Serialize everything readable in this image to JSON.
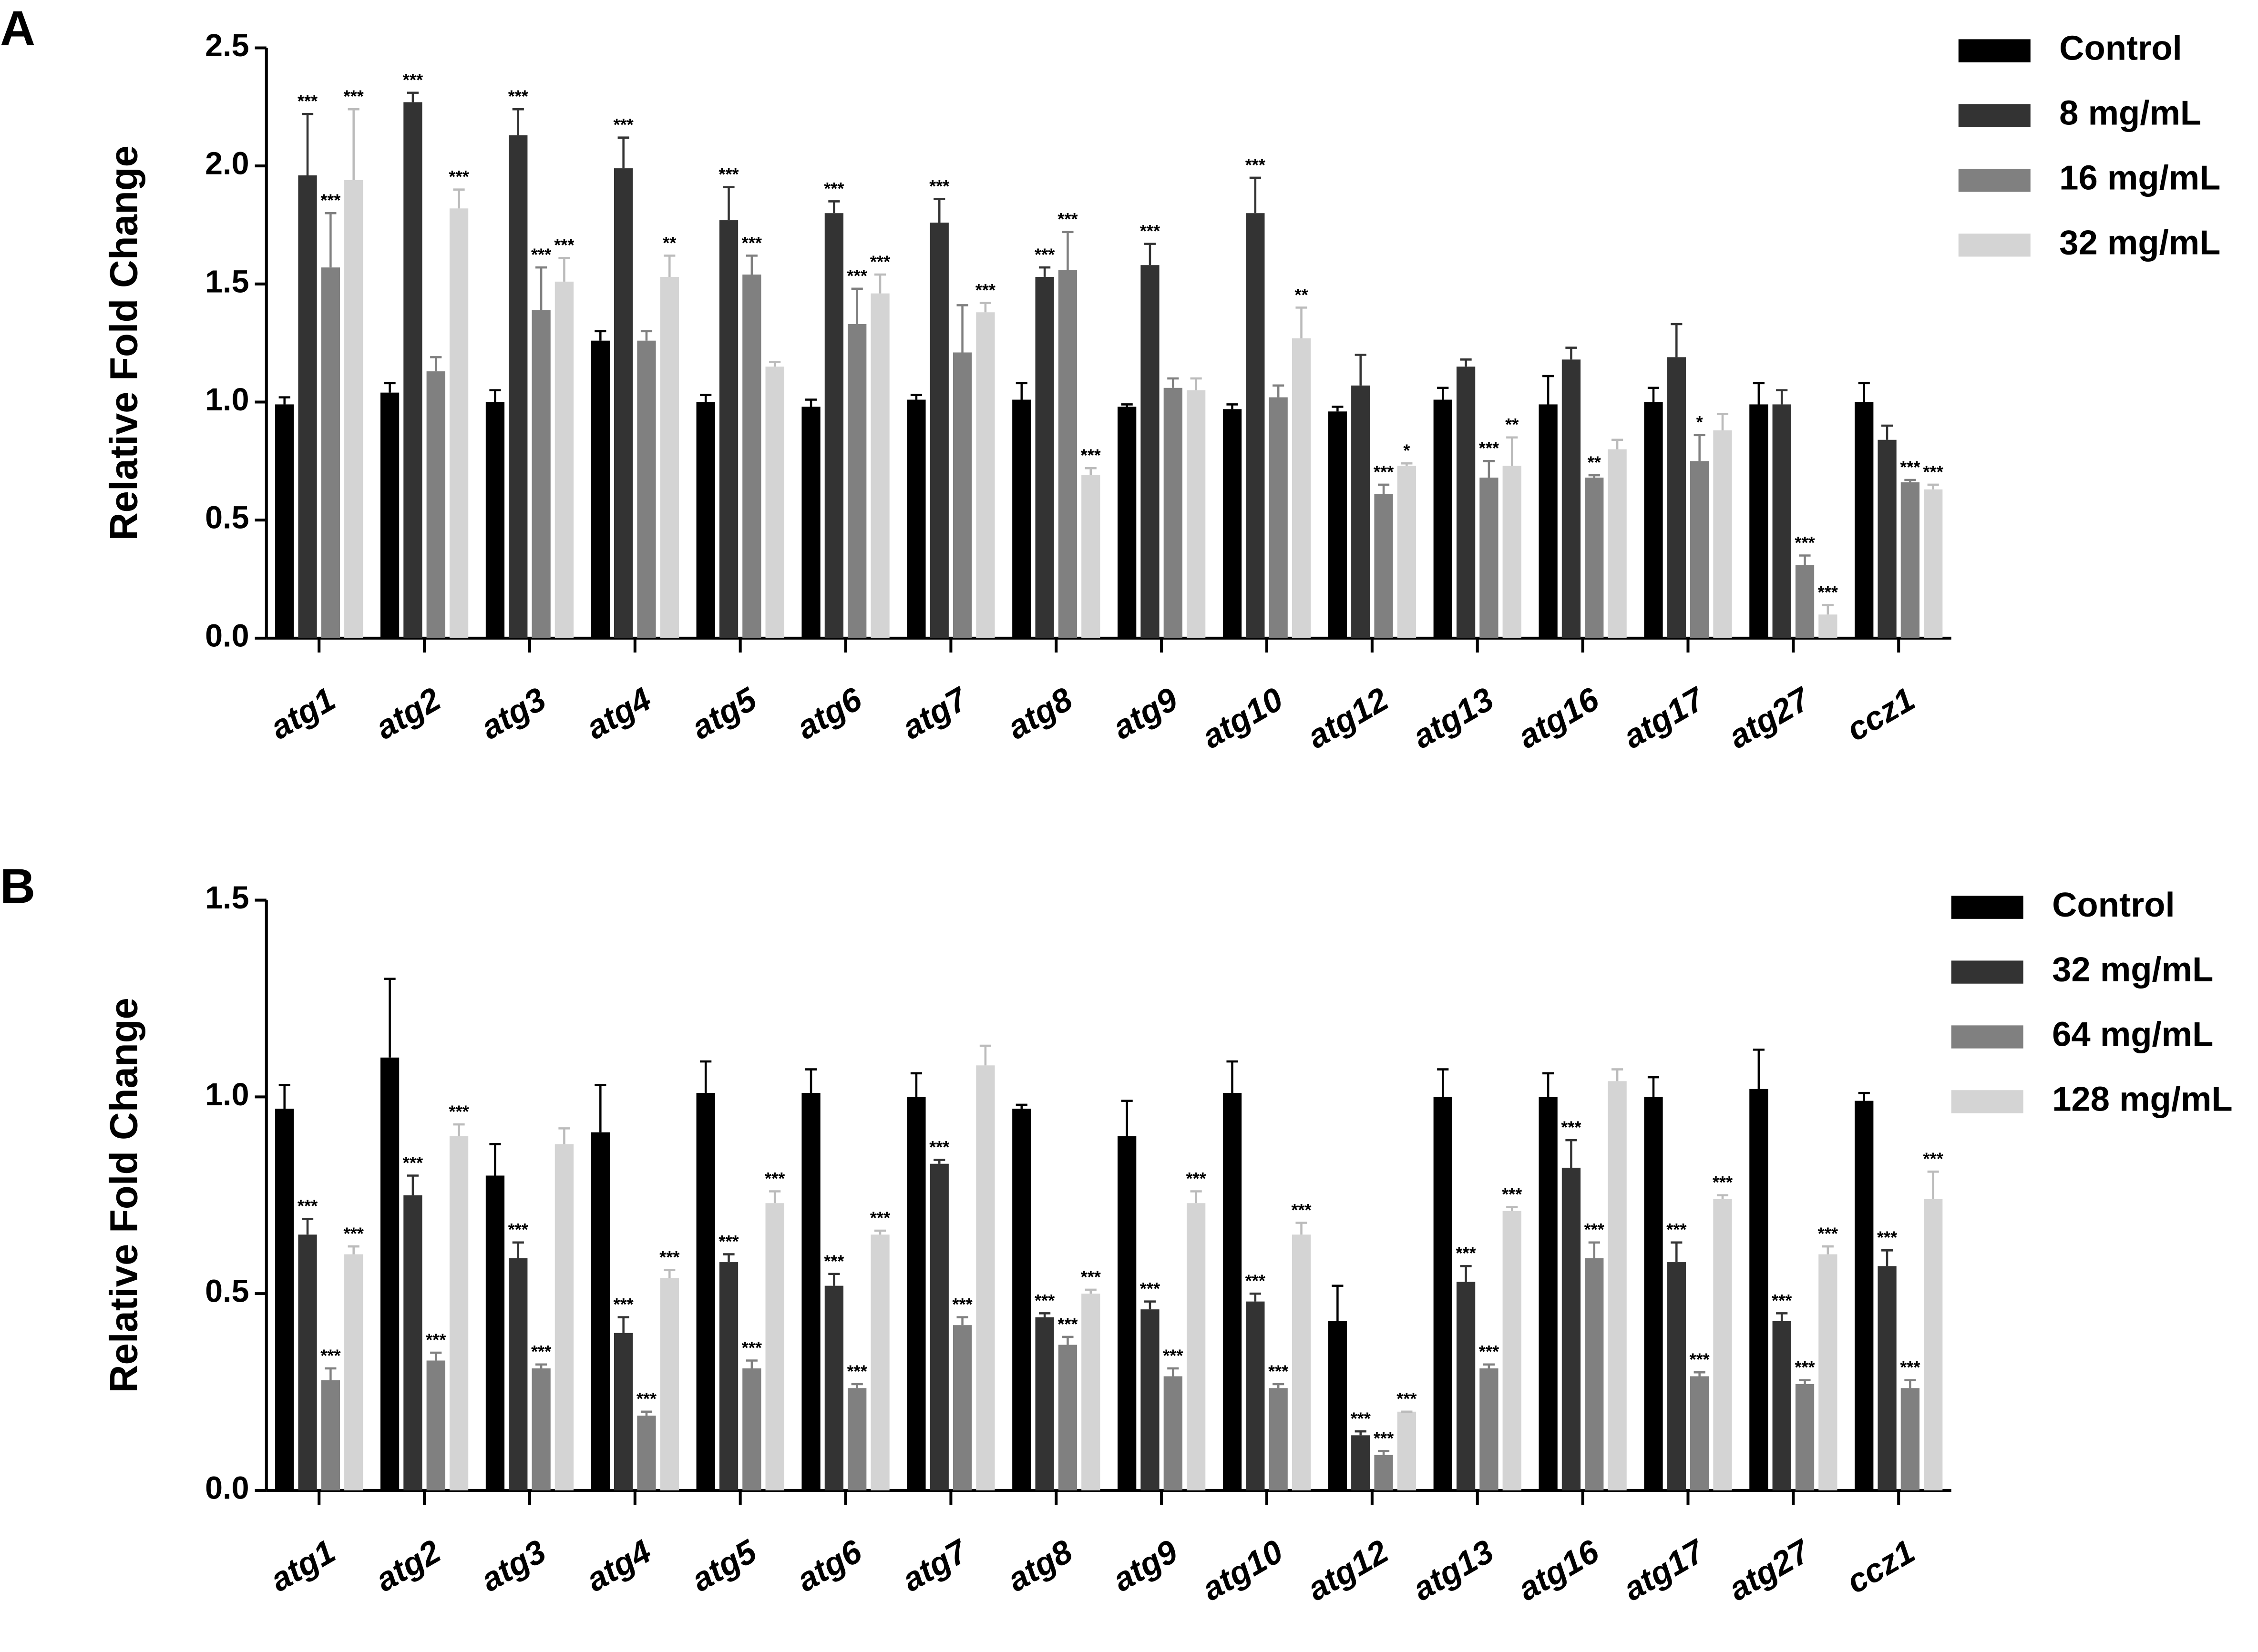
{
  "chart_data": [
    {
      "type": "bar",
      "panel_label": "A",
      "y_label": "Relative Fold Change",
      "categories": [
        "atg1",
        "atg2",
        "atg3",
        "atg4",
        "atg5",
        "atg6",
        "atg7",
        "atg8",
        "atg9",
        "atg10",
        "atg12",
        "atg13",
        "atg16",
        "atg17",
        "atg27",
        "ccz1"
      ],
      "series": [
        {
          "name": "Control",
          "color": "#000000",
          "values": [
            0.99,
            1.04,
            1.0,
            1.26,
            1.0,
            0.98,
            1.01,
            1.01,
            0.98,
            0.97,
            0.96,
            1.01,
            0.99,
            1.0,
            0.99,
            1.0
          ],
          "errors": [
            0.03,
            0.04,
            0.05,
            0.04,
            0.03,
            0.03,
            0.02,
            0.07,
            0.01,
            0.02,
            0.02,
            0.05,
            0.12,
            0.06,
            0.09,
            0.08
          ],
          "significance": [
            null,
            null,
            null,
            null,
            null,
            null,
            null,
            null,
            null,
            null,
            null,
            null,
            null,
            null,
            null,
            null
          ]
        },
        {
          "name": "8 mg/mL",
          "color": "#333333",
          "values": [
            1.96,
            2.27,
            2.13,
            1.99,
            1.77,
            1.8,
            1.76,
            1.53,
            1.58,
            1.8,
            1.07,
            1.15,
            1.18,
            1.19,
            0.99,
            0.84
          ],
          "errors": [
            0.26,
            0.04,
            0.11,
            0.13,
            0.14,
            0.05,
            0.1,
            0.04,
            0.09,
            0.15,
            0.13,
            0.03,
            0.05,
            0.14,
            0.06,
            0.06
          ],
          "significance": [
            "***",
            "***",
            "***",
            "***",
            "***",
            "***",
            "***",
            "***",
            "***",
            "***",
            null,
            null,
            null,
            null,
            null,
            null
          ]
        },
        {
          "name": "16 mg/mL",
          "color": "#808080",
          "values": [
            1.57,
            1.13,
            1.39,
            1.26,
            1.54,
            1.33,
            1.21,
            1.56,
            1.06,
            1.02,
            0.61,
            0.68,
            0.68,
            0.75,
            0.31,
            0.66
          ],
          "errors": [
            0.23,
            0.06,
            0.18,
            0.04,
            0.08,
            0.15,
            0.2,
            0.16,
            0.04,
            0.05,
            0.04,
            0.07,
            0.01,
            0.11,
            0.04,
            0.01
          ],
          "significance": [
            "***",
            null,
            "***",
            null,
            "***",
            "***",
            null,
            "***",
            null,
            null,
            "***",
            "***",
            "**",
            "*",
            "***",
            "***"
          ]
        },
        {
          "name": "32 mg/mL",
          "color": "#d4d4d4",
          "values": [
            1.94,
            1.82,
            1.51,
            1.53,
            1.15,
            1.46,
            1.38,
            0.69,
            1.05,
            1.27,
            0.73,
            0.73,
            0.8,
            0.88,
            0.1,
            0.63
          ],
          "errors": [
            0.3,
            0.08,
            0.1,
            0.09,
            0.02,
            0.08,
            0.04,
            0.03,
            0.05,
            0.13,
            0.01,
            0.12,
            0.04,
            0.07,
            0.04,
            0.02
          ],
          "significance": [
            "***",
            "***",
            "***",
            "**",
            null,
            "***",
            "***",
            "***",
            null,
            "**",
            "*",
            "**",
            null,
            null,
            "***",
            "***"
          ]
        }
      ],
      "ylim": [
        0,
        2.5
      ],
      "yticks": [
        {
          "value": 0,
          "label": "0.0"
        },
        0.5,
        {
          "value": 1,
          "label": "1.0"
        },
        1.5,
        {
          "value": 2,
          "label": "2.0"
        },
        2.5
      ],
      "legend": "right"
    },
    {
      "type": "bar",
      "panel_label": "B",
      "y_label": "Relative Fold Change",
      "categories": [
        "atg1",
        "atg2",
        "atg3",
        "atg4",
        "atg5",
        "atg6",
        "atg7",
        "atg8",
        "atg9",
        "atg10",
        "atg12",
        "atg13",
        "atg16",
        "atg17",
        "atg27",
        "ccz1"
      ],
      "series": [
        {
          "name": "Control",
          "color": "#000000",
          "values": [
            0.97,
            1.1,
            0.8,
            0.91,
            1.01,
            1.01,
            1.0,
            0.97,
            0.9,
            1.01,
            0.43,
            1.0,
            1.0,
            1.0,
            1.02,
            0.99
          ],
          "errors": [
            0.06,
            0.2,
            0.08,
            0.12,
            0.08,
            0.06,
            0.06,
            0.01,
            0.09,
            0.08,
            0.09,
            0.07,
            0.06,
            0.05,
            0.1,
            0.02
          ],
          "significance": [
            null,
            null,
            null,
            null,
            null,
            null,
            null,
            null,
            null,
            null,
            null,
            null,
            null,
            null,
            null,
            null
          ]
        },
        {
          "name": "32 mg/mL",
          "color": "#333333",
          "values": [
            0.65,
            0.75,
            0.59,
            0.4,
            0.58,
            0.52,
            0.83,
            0.44,
            0.46,
            0.48,
            0.14,
            0.53,
            0.82,
            0.58,
            0.43,
            0.57
          ],
          "errors": [
            0.04,
            0.05,
            0.04,
            0.04,
            0.02,
            0.03,
            0.01,
            0.01,
            0.02,
            0.02,
            0.01,
            0.04,
            0.07,
            0.05,
            0.02,
            0.04
          ],
          "significance": [
            "***",
            "***",
            "***",
            "***",
            "***",
            "***",
            "***",
            "***",
            "***",
            "***",
            "***",
            "***",
            "***",
            "***",
            "***",
            "***"
          ]
        },
        {
          "name": "64 mg/mL",
          "color": "#808080",
          "values": [
            0.28,
            0.33,
            0.31,
            0.19,
            0.31,
            0.26,
            0.42,
            0.37,
            0.29,
            0.26,
            0.09,
            0.31,
            0.59,
            0.29,
            0.27,
            0.26
          ],
          "errors": [
            0.03,
            0.02,
            0.01,
            0.01,
            0.02,
            0.01,
            0.02,
            0.02,
            0.02,
            0.01,
            0.01,
            0.01,
            0.04,
            0.01,
            0.01,
            0.02
          ],
          "significance": [
            "***",
            "***",
            "***",
            "***",
            "***",
            "***",
            "***",
            "***",
            "***",
            "***",
            "***",
            "***",
            "***",
            "***",
            "***",
            "***"
          ]
        },
        {
          "name": "128 mg/mL",
          "color": "#d4d4d4",
          "values": [
            0.6,
            0.9,
            0.88,
            0.54,
            0.73,
            0.65,
            1.08,
            0.5,
            0.73,
            0.65,
            0.2,
            0.71,
            1.04,
            0.74,
            0.6,
            0.74
          ],
          "errors": [
            0.02,
            0.03,
            0.04,
            0.02,
            0.03,
            0.01,
            0.05,
            0.01,
            0.03,
            0.03,
            0,
            0.01,
            0.03,
            0.01,
            0.02,
            0.07
          ],
          "significance": [
            "***",
            "***",
            null,
            "***",
            "***",
            "***",
            null,
            "***",
            "***",
            "***",
            "***",
            "***",
            null,
            "***",
            "***",
            "***"
          ]
        }
      ],
      "ylim": [
        0,
        1.5
      ],
      "yticks": [
        {
          "value": 0,
          "label": "0.0"
        },
        0.5,
        {
          "value": 1,
          "label": "1.0"
        },
        1.5
      ],
      "legend": "right"
    }
  ]
}
